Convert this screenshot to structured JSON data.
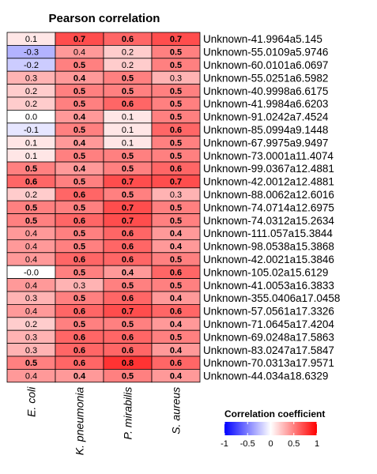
{
  "chart_data": {
    "type": "heatmap",
    "title": "Pearson correlation",
    "columns": [
      "E. coli",
      "K. pneumonia",
      "P. mirabilis",
      "S. aureus"
    ],
    "rows": [
      "Unknown-41.9964a5.145",
      "Unknown-55.0109a5.9746",
      "Unknown-60.0101a6.0697",
      "Unknown-55.0251a6.5982",
      "Unknown-40.9998a6.6175",
      "Unknown-41.9984a6.6203",
      "Unknown-91.0242a7.4524",
      "Unknown-85.0994a9.1448",
      "Unknown-67.9975a9.9497",
      "Unknown-73.0001a11.4074",
      "Unknown-99.0367a12.4881",
      "Unknown-42.0012a12.4881",
      "Unknown-88.0062a12.6016",
      "Unknown-74.0714a12.6975",
      "Unknown-74.0312a15.2634",
      "Unknown-111.057a15.3844",
      "Unknown-98.0538a15.3868",
      "Unknown-42.0021a15.3846",
      "Unknown-105.02a15.6129",
      "Unknown-41.0053a16.3833",
      "Unknown-355.0406a17.0458",
      "Unknown-57.0561a17.3326",
      "Unknown-71.0645a17.4204",
      "Unknown-69.0248a17.5863",
      "Unknown-83.0247a17.5847",
      "Unknown-70.0313a17.9571",
      "Unknown-44.034a18.6329"
    ],
    "values": [
      [
        0.1,
        0.7,
        0.6,
        0.7
      ],
      [
        -0.3,
        0.4,
        0.2,
        0.5
      ],
      [
        -0.2,
        0.5,
        0.2,
        0.5
      ],
      [
        0.3,
        0.4,
        0.5,
        0.3
      ],
      [
        0.2,
        0.5,
        0.5,
        0.5
      ],
      [
        0.2,
        0.5,
        0.6,
        0.5
      ],
      [
        0.0,
        0.4,
        0.1,
        0.5
      ],
      [
        -0.1,
        0.5,
        0.1,
        0.6
      ],
      [
        0.1,
        0.4,
        0.1,
        0.5
      ],
      [
        0.1,
        0.5,
        0.5,
        0.5
      ],
      [
        0.5,
        0.4,
        0.5,
        0.6
      ],
      [
        0.6,
        0.5,
        0.7,
        0.7
      ],
      [
        0.2,
        0.6,
        0.5,
        0.3
      ],
      [
        0.5,
        0.5,
        0.7,
        0.5
      ],
      [
        0.5,
        0.6,
        0.7,
        0.5
      ],
      [
        0.4,
        0.5,
        0.6,
        0.4
      ],
      [
        0.4,
        0.5,
        0.6,
        0.4
      ],
      [
        0.4,
        0.6,
        0.6,
        0.5
      ],
      [
        -0.0,
        0.5,
        0.4,
        0.6
      ],
      [
        0.4,
        0.3,
        0.5,
        0.5
      ],
      [
        0.3,
        0.5,
        0.6,
        0.4
      ],
      [
        0.4,
        0.6,
        0.7,
        0.6
      ],
      [
        0.2,
        0.5,
        0.5,
        0.4
      ],
      [
        0.3,
        0.6,
        0.6,
        0.5
      ],
      [
        0.3,
        0.6,
        0.6,
        0.4
      ],
      [
        0.5,
        0.6,
        0.8,
        0.6
      ],
      [
        0.4,
        0.4,
        0.5,
        0.4
      ]
    ],
    "value_labels": [
      [
        "0.1",
        "0.7",
        "0.6",
        "0.7"
      ],
      [
        "-0.3",
        "0.4",
        "0.2",
        "0.5"
      ],
      [
        "-0.2",
        "0.5",
        "0.2",
        "0.5"
      ],
      [
        "0.3",
        "0.4",
        "0.5",
        "0.3"
      ],
      [
        "0.2",
        "0.5",
        "0.5",
        "0.5"
      ],
      [
        "0.2",
        "0.5",
        "0.6",
        "0.5"
      ],
      [
        "0.0",
        "0.4",
        "0.1",
        "0.5"
      ],
      [
        "-0.1",
        "0.5",
        "0.1",
        "0.6"
      ],
      [
        "0.1",
        "0.4",
        "0.1",
        "0.5"
      ],
      [
        "0.1",
        "0.5",
        "0.5",
        "0.5"
      ],
      [
        "0.5",
        "0.4",
        "0.5",
        "0.6"
      ],
      [
        "0.6",
        "0.5",
        "0.7",
        "0.7"
      ],
      [
        "0.2",
        "0.6",
        "0.5",
        "0.3"
      ],
      [
        "0.5",
        "0.5",
        "0.7",
        "0.5"
      ],
      [
        "0.5",
        "0.6",
        "0.7",
        "0.5"
      ],
      [
        "0.4",
        "0.5",
        "0.6",
        "0.4"
      ],
      [
        "0.4",
        "0.5",
        "0.6",
        "0.4"
      ],
      [
        "0.4",
        "0.6",
        "0.6",
        "0.5"
      ],
      [
        "-0.0",
        "0.5",
        "0.4",
        "0.6"
      ],
      [
        "0.4",
        "0.3",
        "0.5",
        "0.5"
      ],
      [
        "0.3",
        "0.5",
        "0.6",
        "0.4"
      ],
      [
        "0.4",
        "0.6",
        "0.7",
        "0.6"
      ],
      [
        "0.2",
        "0.5",
        "0.5",
        "0.4"
      ],
      [
        "0.3",
        "0.6",
        "0.6",
        "0.5"
      ],
      [
        "0.3",
        "0.6",
        "0.6",
        "0.4"
      ],
      [
        "0.5",
        "0.6",
        "0.8",
        "0.6"
      ],
      [
        "0.4",
        "0.4",
        "0.5",
        "0.4"
      ]
    ],
    "bold_labels": [
      [
        false,
        true,
        true,
        true
      ],
      [
        false,
        false,
        false,
        true
      ],
      [
        false,
        true,
        false,
        true
      ],
      [
        false,
        true,
        true,
        false
      ],
      [
        false,
        true,
        true,
        true
      ],
      [
        false,
        true,
        true,
        true
      ],
      [
        false,
        true,
        false,
        true
      ],
      [
        false,
        true,
        false,
        true
      ],
      [
        false,
        true,
        false,
        true
      ],
      [
        false,
        true,
        true,
        true
      ],
      [
        true,
        true,
        true,
        true
      ],
      [
        true,
        true,
        true,
        true
      ],
      [
        false,
        true,
        true,
        false
      ],
      [
        true,
        true,
        true,
        true
      ],
      [
        true,
        true,
        true,
        true
      ],
      [
        false,
        true,
        true,
        true
      ],
      [
        false,
        true,
        true,
        true
      ],
      [
        false,
        true,
        true,
        true
      ],
      [
        false,
        true,
        true,
        true
      ],
      [
        false,
        false,
        true,
        true
      ],
      [
        false,
        true,
        true,
        true
      ],
      [
        false,
        true,
        true,
        true
      ],
      [
        false,
        true,
        true,
        true
      ],
      [
        false,
        true,
        true,
        true
      ],
      [
        false,
        true,
        true,
        true
      ],
      [
        true,
        true,
        true,
        true
      ],
      [
        false,
        true,
        true,
        true
      ]
    ],
    "color_scale": {
      "domain": [
        -1,
        0,
        1
      ],
      "colors": [
        "#0000ff",
        "#ffffff",
        "#ff0000"
      ]
    },
    "legend": {
      "title": "Correlation coefficient",
      "ticks": [
        -1,
        -0.5,
        0,
        0.5,
        1
      ],
      "tick_labels": [
        "-1",
        "-0.5",
        "0",
        "0.5",
        "1"
      ],
      "position": "bottom-right"
    }
  }
}
